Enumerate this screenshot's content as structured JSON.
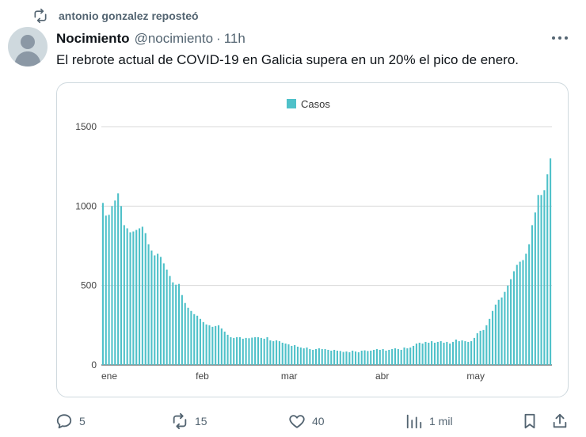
{
  "repost": {
    "text": "antonio gonzalez reposteó",
    "icon": "repost-icon"
  },
  "tweet": {
    "author_name": "Nocimiento",
    "handle": "@nocimiento",
    "separator": "·",
    "time": "11h",
    "text": "El rebrote actual de COVID-19 en Galicia supera en un 20% el pico de enero."
  },
  "actions": {
    "replies": "5",
    "reposts": "15",
    "likes": "40",
    "views": "1 mil"
  },
  "colors": {
    "bar": "#4fc1c9",
    "grid": "#d9d9d9",
    "secondary_text": "#536471"
  },
  "chart_data": {
    "type": "bar",
    "legend": {
      "label": "Casos",
      "position": "top"
    },
    "ylim": [
      0,
      1500
    ],
    "yticks": [
      0,
      500,
      1000,
      1500
    ],
    "xticks": [
      "ene",
      "feb",
      "mar",
      "abr",
      "may"
    ],
    "xtick_index": [
      0,
      31,
      59,
      90,
      120
    ],
    "grid": true,
    "values": [
      1020,
      940,
      945,
      1000,
      1035,
      1080,
      1000,
      880,
      860,
      835,
      840,
      850,
      860,
      870,
      830,
      760,
      720,
      690,
      700,
      680,
      640,
      600,
      560,
      520,
      505,
      510,
      440,
      390,
      360,
      340,
      320,
      310,
      290,
      270,
      255,
      250,
      240,
      245,
      250,
      230,
      210,
      190,
      175,
      170,
      175,
      175,
      165,
      170,
      168,
      172,
      175,
      175,
      170,
      165,
      175,
      155,
      150,
      155,
      150,
      140,
      135,
      130,
      120,
      125,
      115,
      110,
      105,
      110,
      100,
      95,
      100,
      105,
      100,
      100,
      95,
      90,
      95,
      90,
      88,
      82,
      85,
      80,
      90,
      85,
      80,
      90,
      92,
      88,
      90,
      95,
      100,
      95,
      100,
      90,
      95,
      100,
      105,
      100,
      95,
      110,
      105,
      110,
      120,
      135,
      140,
      135,
      145,
      140,
      150,
      140,
      145,
      150,
      140,
      145,
      135,
      145,
      160,
      150,
      155,
      150,
      145,
      150,
      170,
      200,
      215,
      220,
      250,
      290,
      340,
      380,
      410,
      425,
      460,
      500,
      540,
      590,
      630,
      650,
      660,
      700,
      760,
      880,
      960,
      1070,
      1070,
      1100,
      1200,
      1300
    ]
  }
}
